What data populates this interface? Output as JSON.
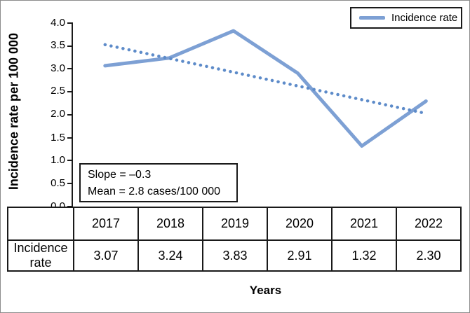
{
  "colors": {
    "line": "#7da0d4",
    "trendline": "#5d8bc9",
    "axis": "#1a1a1a",
    "figure_border": "#8c8c8c"
  },
  "y_axis": {
    "label": "Incidence rate per 100 000",
    "tick_labels": [
      "0.0",
      "0.5",
      "1.0",
      "1.5",
      "2.0",
      "2.5",
      "3.0",
      "3.5",
      "4.0"
    ]
  },
  "x_axis": {
    "label": "Years"
  },
  "legend": {
    "label": "Incidence rate"
  },
  "annotation_box": {
    "line1": "Slope = –0.3",
    "line2": "Mean = 2.8 cases/100 000"
  },
  "table": {
    "row_label": "Incidence rate",
    "display_values": [
      "3.07",
      "3.24",
      "3.83",
      "2.91",
      "1.32",
      "2.30"
    ]
  },
  "chart_data": {
    "type": "line",
    "title": "",
    "categories": [
      "2017",
      "2018",
      "2019",
      "2020",
      "2021",
      "2022"
    ],
    "series": [
      {
        "name": "Incidence rate",
        "values": [
          3.07,
          3.24,
          3.83,
          2.91,
          1.32,
          2.3
        ]
      }
    ],
    "trendline": {
      "type": "linear",
      "style": "dotted",
      "slope": -0.3,
      "mean": 2.8,
      "start_value": 3.53,
      "end_value": 2.03
    },
    "xlabel": "Years",
    "ylabel": "Incidence rate per 100 000",
    "ylim": [
      0.0,
      4.0
    ],
    "ytick_step": 0.5,
    "grid": false,
    "legend_position": "top-right",
    "annotations": [
      "Slope = –0.3",
      "Mean = 2.8 cases/100 000"
    ]
  }
}
